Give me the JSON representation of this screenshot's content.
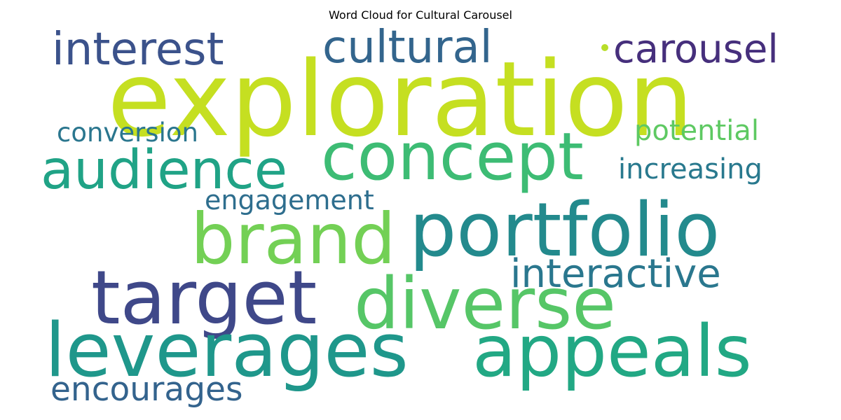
{
  "title": "Word Cloud for Cultural Carousel",
  "words": [
    {
      "text": "exploration",
      "color": "#c5df21"
    },
    {
      "text": "interest",
      "color": "#3b528b"
    },
    {
      "text": "cultural",
      "color": "#33658d"
    },
    {
      "text": "carousel",
      "color": "#462f7c"
    },
    {
      "text": "concept",
      "color": "#3dbc74"
    },
    {
      "text": "audience",
      "color": "#20a386"
    },
    {
      "text": "conversion",
      "color": "#2a768e"
    },
    {
      "text": "potential",
      "color": "#5ec962"
    },
    {
      "text": "increasing",
      "color": "#29798e"
    },
    {
      "text": "engagement",
      "color": "#2e6e8e"
    },
    {
      "text": "brand",
      "color": "#73d055"
    },
    {
      "text": "portfolio",
      "color": "#238a8d"
    },
    {
      "text": "interactive",
      "color": "#2a778e"
    },
    {
      "text": "target",
      "color": "#3f4889"
    },
    {
      "text": "diverse",
      "color": "#56c667"
    },
    {
      "text": "leverages",
      "color": "#1f978b"
    },
    {
      "text": "appeals",
      "color": "#22a884"
    },
    {
      "text": "encourages",
      "color": "#33638d"
    }
  ],
  "dot_color": "#b8de29"
}
